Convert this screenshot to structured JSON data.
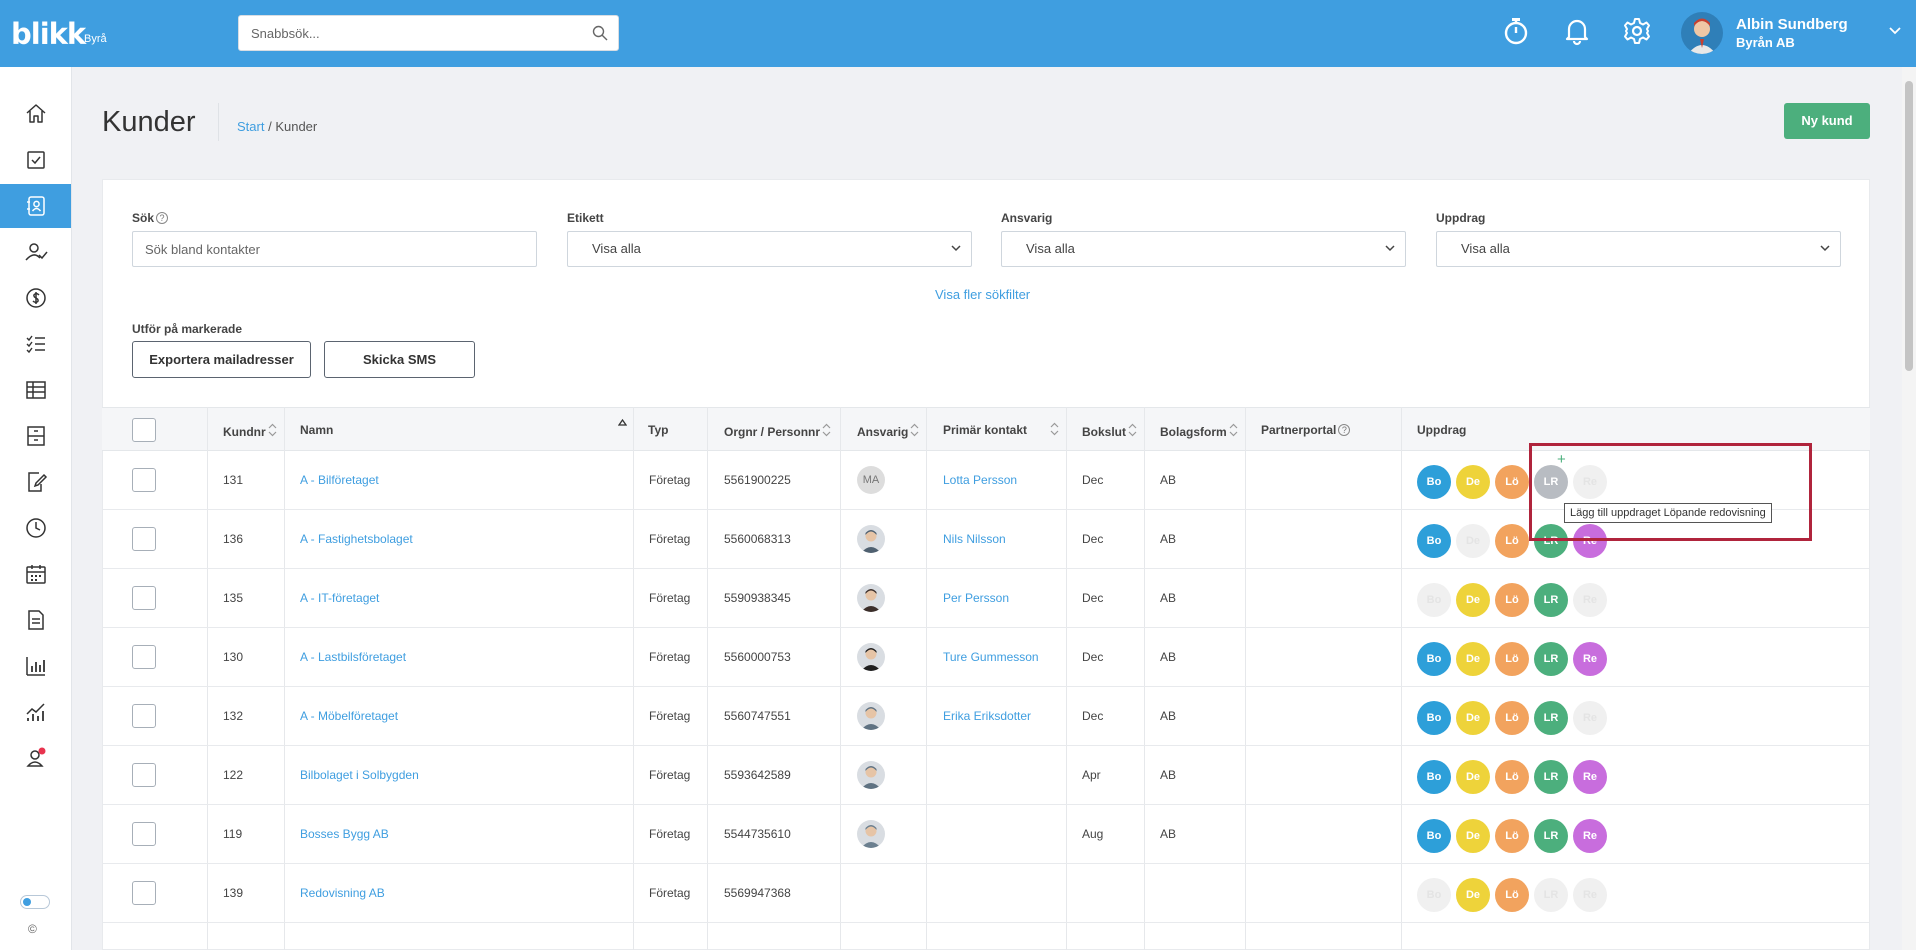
{
  "app": {
    "logo": "blikk",
    "logo_sub": "Byrå"
  },
  "search": {
    "placeholder": "Snabbsök..."
  },
  "user": {
    "name": "Albin Sundberg",
    "company": "Byrån AB"
  },
  "page": {
    "title": "Kunder",
    "breadcrumb_start": "Start",
    "breadcrumb_sep": " / ",
    "breadcrumb_current": "Kunder",
    "new_button": "Ny kund"
  },
  "filters": {
    "search_label": "Sök",
    "search_placeholder": "Sök bland kontakter",
    "tag_label": "Etikett",
    "tag_value": "Visa alla",
    "resp_label": "Ansvarig",
    "resp_value": "Visa alla",
    "assignment_label": "Uppdrag",
    "assignment_value": "Visa alla",
    "more": "Visa fler sökfilter"
  },
  "actions": {
    "label": "Utför på markerade",
    "export": "Exportera mailadresser",
    "sms": "Skicka SMS"
  },
  "table": {
    "headers": {
      "nr": "Kundnr",
      "name": "Namn",
      "type": "Typ",
      "org": "Orgnr / Personnr",
      "resp": "Ansvarig",
      "contact": "Primär kontakt",
      "close": "Bokslut",
      "form": "Bolagsform",
      "portal": "Partnerportal",
      "assign": "Uppdrag"
    },
    "rows": [
      {
        "nr": "131",
        "name": "A - Bilföretaget",
        "type": "Företag",
        "org": "5561900225",
        "resp": "MA",
        "contact": "Lotta Persson",
        "close": "Dec",
        "form": "AB"
      },
      {
        "nr": "136",
        "name": "A - Fastighetsbolaget",
        "type": "Företag",
        "org": "5560068313",
        "resp": "",
        "contact": "Nils Nilsson",
        "close": "Dec",
        "form": "AB"
      },
      {
        "nr": "135",
        "name": "A - IT-företaget",
        "type": "Företag",
        "org": "5590938345",
        "resp": "",
        "contact": "Per Persson",
        "close": "Dec",
        "form": "AB"
      },
      {
        "nr": "130",
        "name": "A - Lastbilsföretaget",
        "type": "Företag",
        "org": "5560000753",
        "resp": "",
        "contact": "Ture Gummesson",
        "close": "Dec",
        "form": "AB"
      },
      {
        "nr": "132",
        "name": "A - Möbelföretaget",
        "type": "Företag",
        "org": "5560747551",
        "resp": "",
        "contact": "Erika Eriksdotter",
        "close": "Dec",
        "form": "AB"
      },
      {
        "nr": "122",
        "name": "Bilbolaget i Solbygden",
        "type": "Företag",
        "org": "5593642589",
        "resp": "",
        "contact": "",
        "close": "Apr",
        "form": "AB"
      },
      {
        "nr": "119",
        "name": "Bosses Bygg AB",
        "type": "Företag",
        "org": "5544735610",
        "resp": "",
        "contact": "",
        "close": "Aug",
        "form": "AB"
      },
      {
        "nr": "139",
        "name": "Redovisning AB",
        "type": "Företag",
        "org": "5569947368",
        "resp": "",
        "contact": "",
        "close": "",
        "form": ""
      }
    ]
  },
  "assignments": {
    "labels": [
      "Bo",
      "De",
      "Lö",
      "LR",
      "Re"
    ],
    "colors": [
      "#2d9fd9",
      "#eed33a",
      "#f2a35e",
      "#4caf7d",
      "#c86ddd"
    ]
  },
  "tooltip": "Lägg till uppdraget Löpande redovisning",
  "footer": {
    "copy": "©"
  }
}
